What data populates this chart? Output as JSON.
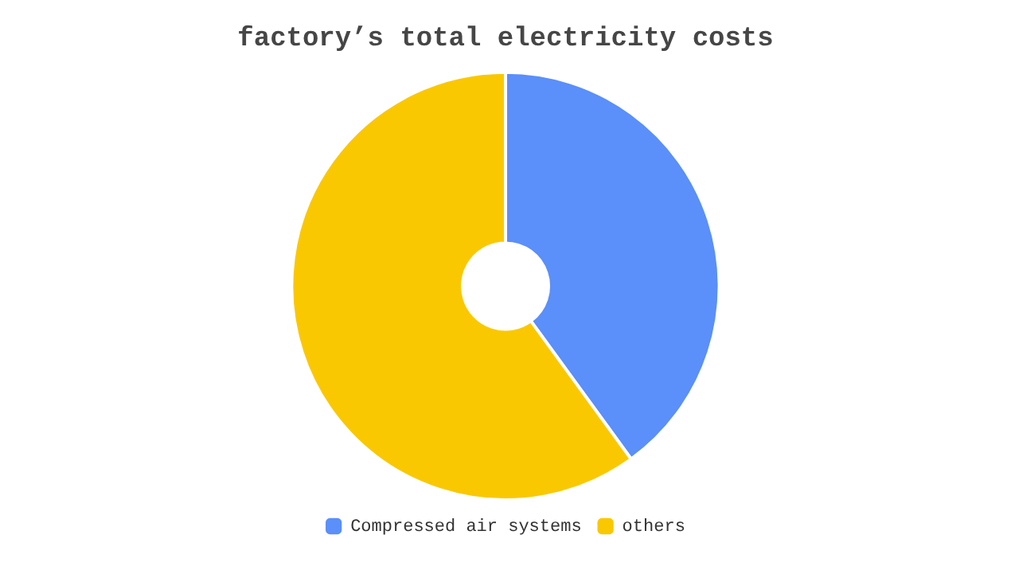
{
  "chart_data": {
    "type": "donut",
    "title": "factory’s total electricity costs",
    "categories": [
      "Compressed air systems",
      "others"
    ],
    "values": [
      40,
      60
    ],
    "colors": [
      "#5b8ff9",
      "#fac800"
    ],
    "legend": "bottom"
  }
}
